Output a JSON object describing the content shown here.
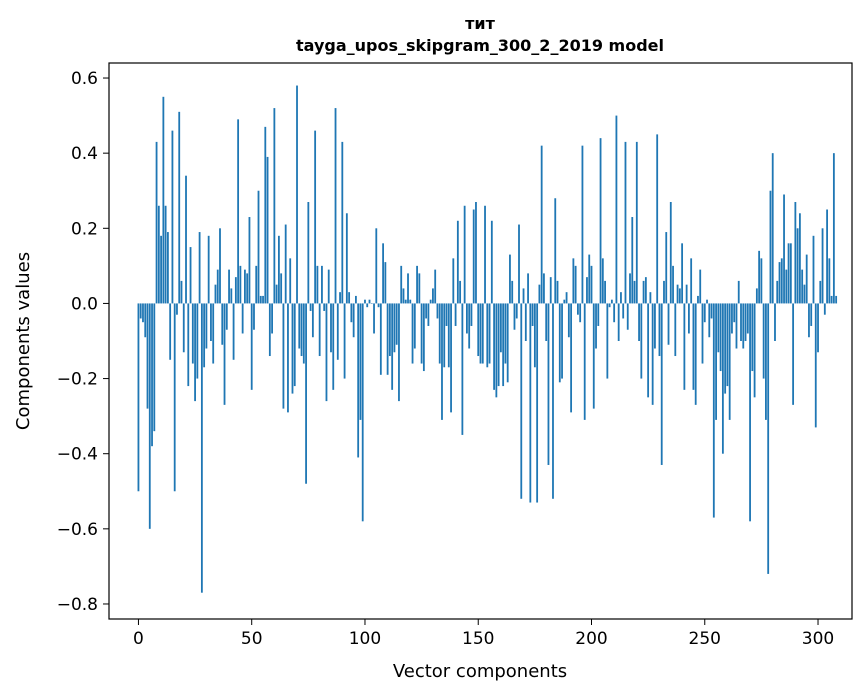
{
  "chart_data": {
    "type": "bar",
    "title": [
      "тит",
      "tayga_upos_skipgram_300_2_2019 model"
    ],
    "xlabel": "Vector components",
    "ylabel": "Components values",
    "xlim": [
      -13,
      315
    ],
    "ylim": [
      -0.84,
      0.64
    ],
    "x_ticks": [
      {
        "value": 0,
        "label": "0"
      },
      {
        "value": 50,
        "label": "50"
      },
      {
        "value": 100,
        "label": "100"
      },
      {
        "value": 150,
        "label": "150"
      },
      {
        "value": 200,
        "label": "200"
      },
      {
        "value": 250,
        "label": "250"
      },
      {
        "value": 300,
        "label": "300"
      }
    ],
    "y_ticks": [
      {
        "value": 0.6,
        "label": "0.6"
      },
      {
        "value": 0.4,
        "label": "0.4"
      },
      {
        "value": 0.2,
        "label": "0.2"
      },
      {
        "value": 0.0,
        "label": "0.0"
      },
      {
        "value": -0.2,
        "label": "−0.2"
      },
      {
        "value": -0.4,
        "label": "−0.4"
      },
      {
        "value": -0.6,
        "label": "−0.6"
      },
      {
        "value": -0.8,
        "label": "−0.8"
      }
    ],
    "bar_color": "#1f77b4",
    "values": [
      -0.5,
      -0.04,
      -0.05,
      -0.09,
      -0.28,
      -0.6,
      -0.38,
      -0.34,
      0.43,
      0.26,
      0.18,
      0.55,
      0.26,
      0.19,
      -0.15,
      0.46,
      -0.5,
      -0.03,
      0.51,
      0.06,
      -0.13,
      0.34,
      -0.22,
      0.15,
      -0.16,
      -0.26,
      -0.2,
      0.19,
      -0.77,
      -0.17,
      -0.12,
      0.18,
      -0.1,
      -0.16,
      0.05,
      0.09,
      0.2,
      -0.11,
      -0.27,
      -0.07,
      0.09,
      0.04,
      -0.15,
      0.07,
      0.49,
      0.1,
      -0.08,
      0.09,
      0.08,
      0.23,
      -0.23,
      -0.07,
      0.1,
      0.3,
      0.02,
      0.02,
      0.47,
      0.39,
      -0.14,
      -0.08,
      0.52,
      0.05,
      0.18,
      0.08,
      -0.28,
      0.21,
      -0.29,
      0.12,
      -0.24,
      -0.22,
      0.58,
      -0.12,
      -0.14,
      -0.16,
      -0.48,
      0.27,
      -0.02,
      -0.09,
      0.46,
      0.1,
      -0.14,
      0.1,
      -0.02,
      -0.26,
      0.09,
      -0.13,
      -0.23,
      0.52,
      -0.15,
      0.03,
      0.43,
      -0.2,
      0.24,
      0.03,
      -0.05,
      -0.09,
      0.02,
      -0.41,
      -0.31,
      -0.58,
      0.01,
      -0.01,
      0.01,
      0.0,
      -0.08,
      0.2,
      -0.01,
      -0.19,
      0.16,
      0.11,
      -0.19,
      -0.14,
      -0.23,
      -0.13,
      -0.11,
      -0.26,
      0.1,
      0.04,
      0.01,
      0.08,
      0.01,
      -0.16,
      -0.12,
      0.1,
      0.08,
      -0.16,
      -0.18,
      -0.04,
      -0.06,
      0.01,
      0.04,
      0.09,
      -0.04,
      -0.16,
      -0.31,
      -0.17,
      -0.06,
      -0.17,
      -0.29,
      0.12,
      -0.06,
      0.22,
      0.06,
      -0.35,
      0.26,
      -0.08,
      -0.12,
      -0.06,
      0.25,
      0.27,
      -0.14,
      -0.16,
      -0.16,
      0.26,
      -0.17,
      -0.16,
      0.22,
      -0.23,
      -0.25,
      -0.22,
      -0.13,
      -0.22,
      -0.16,
      -0.21,
      0.13,
      0.06,
      -0.07,
      -0.04,
      0.21,
      -0.52,
      0.04,
      -0.1,
      0.08,
      -0.53,
      -0.06,
      -0.17,
      -0.53,
      0.05,
      0.42,
      0.08,
      -0.1,
      -0.43,
      0.07,
      -0.52,
      0.28,
      0.06,
      -0.21,
      -0.2,
      0.01,
      0.03,
      -0.09,
      -0.29,
      0.12,
      0.1,
      -0.03,
      -0.05,
      0.42,
      -0.31,
      0.07,
      0.13,
      0.1,
      -0.28,
      -0.12,
      -0.06,
      0.44,
      0.12,
      0.06,
      -0.2,
      -0.01,
      0.01,
      -0.05,
      0.5,
      -0.1,
      0.03,
      -0.04,
      0.43,
      -0.07,
      0.08,
      0.23,
      0.06,
      0.43,
      -0.1,
      -0.2,
      0.06,
      0.07,
      -0.25,
      0.03,
      -0.27,
      -0.12,
      0.45,
      -0.14,
      -0.43,
      0.06,
      0.19,
      -0.11,
      0.27,
      0.1,
      -0.14,
      0.05,
      0.04,
      0.16,
      -0.23,
      0.05,
      -0.08,
      0.12,
      -0.23,
      -0.27,
      0.02,
      0.09,
      -0.16,
      -0.05,
      0.01,
      -0.09,
      -0.04,
      -0.57,
      -0.31,
      -0.13,
      -0.18,
      -0.4,
      -0.24,
      -0.22,
      -0.31,
      -0.08,
      -0.05,
      -0.12,
      0.06,
      -0.1,
      -0.12,
      -0.1,
      -0.08,
      -0.58,
      -0.18,
      -0.25,
      0.04,
      0.14,
      0.12,
      -0.2,
      -0.31,
      -0.72,
      0.3,
      0.4,
      -0.1,
      0.06,
      0.11,
      0.12,
      0.29,
      0.09,
      0.16,
      0.16,
      -0.27,
      0.27,
      0.2,
      0.24,
      0.09,
      0.05,
      0.13,
      -0.09,
      -0.06,
      0.18,
      -0.33,
      -0.13,
      0.06,
      0.2,
      -0.03,
      0.25,
      0.12,
      0.02,
      0.4,
      0.02
    ]
  }
}
